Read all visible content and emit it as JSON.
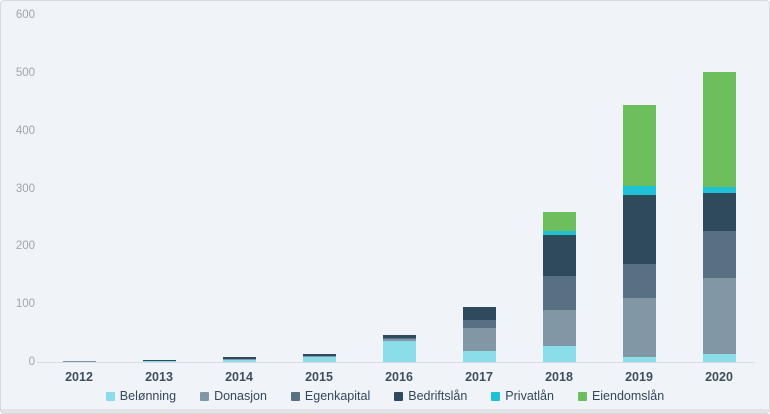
{
  "chart_data": {
    "type": "bar",
    "stacked": true,
    "title": "",
    "xlabel": "",
    "ylabel": "",
    "grid": false,
    "legend_position": "bottom",
    "ylim": [
      0,
      600
    ],
    "y_ticks": [
      0,
      100,
      200,
      300,
      400,
      500,
      600
    ],
    "categories": [
      "2012",
      "2013",
      "2014",
      "2015",
      "2016",
      "2017",
      "2018",
      "2019",
      "2020"
    ],
    "series": [
      {
        "name": "Belønning",
        "color": "#8adde9",
        "values": [
          1,
          2,
          4,
          10,
          37,
          19,
          27,
          9,
          14
        ]
      },
      {
        "name": "Donasjon",
        "color": "#8297a6",
        "values": [
          1,
          1,
          1,
          1,
          2,
          39,
          63,
          101,
          131
        ]
      },
      {
        "name": "Egenkapital",
        "color": "#577183",
        "values": [
          0,
          0,
          0,
          0,
          2,
          15,
          59,
          59,
          82
        ]
      },
      {
        "name": "Bedriftslån",
        "color": "#2e4a5c",
        "values": [
          0,
          1,
          4,
          2,
          5,
          22,
          70,
          119,
          65
        ]
      },
      {
        "name": "Privatlån",
        "color": "#1ec1d6",
        "values": [
          0,
          0,
          0,
          0,
          0,
          0,
          7,
          16,
          11
        ]
      },
      {
        "name": "Eiendomslån",
        "color": "#6dbe5c",
        "values": [
          0,
          0,
          0,
          0,
          0,
          0,
          33,
          140,
          199
        ]
      }
    ]
  },
  "colors": {
    "background": "#f0f3f8",
    "frame_border": "#d6d9de",
    "axis_line": "#d9dde3",
    "y_label_text": "#a0a6ad",
    "x_label_text": "#3d4e5c",
    "legend_text": "#33475b"
  }
}
